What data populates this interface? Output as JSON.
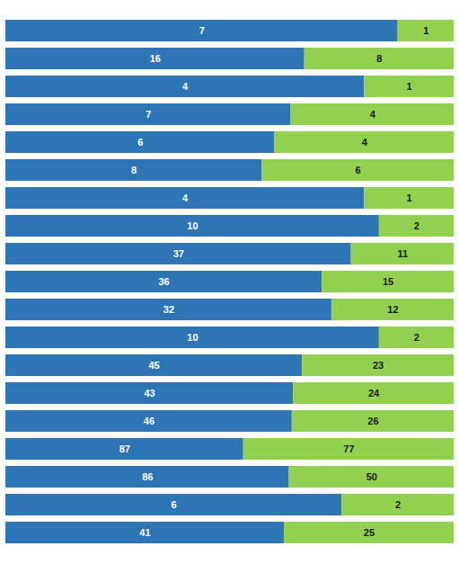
{
  "chart_data": {
    "type": "bar",
    "orientation": "horizontal",
    "stacked": true,
    "data_labels": true,
    "tick_labels": false,
    "categories": [
      null,
      null,
      null,
      null,
      null,
      null,
      null,
      null,
      null,
      null,
      null,
      null,
      null,
      null,
      null,
      null,
      null,
      null,
      null
    ],
    "series": [
      {
        "color": "#2E75B6",
        "values": [
          7,
          16,
          4,
          7,
          6,
          8,
          4,
          10,
          37,
          36,
          32,
          10,
          45,
          43,
          46,
          87,
          86,
          6,
          41
        ]
      },
      {
        "color": "#92D050",
        "values": [
          1,
          8,
          1,
          4,
          4,
          6,
          1,
          2,
          11,
          15,
          12,
          2,
          23,
          24,
          26,
          77,
          50,
          2,
          25
        ]
      }
    ]
  }
}
